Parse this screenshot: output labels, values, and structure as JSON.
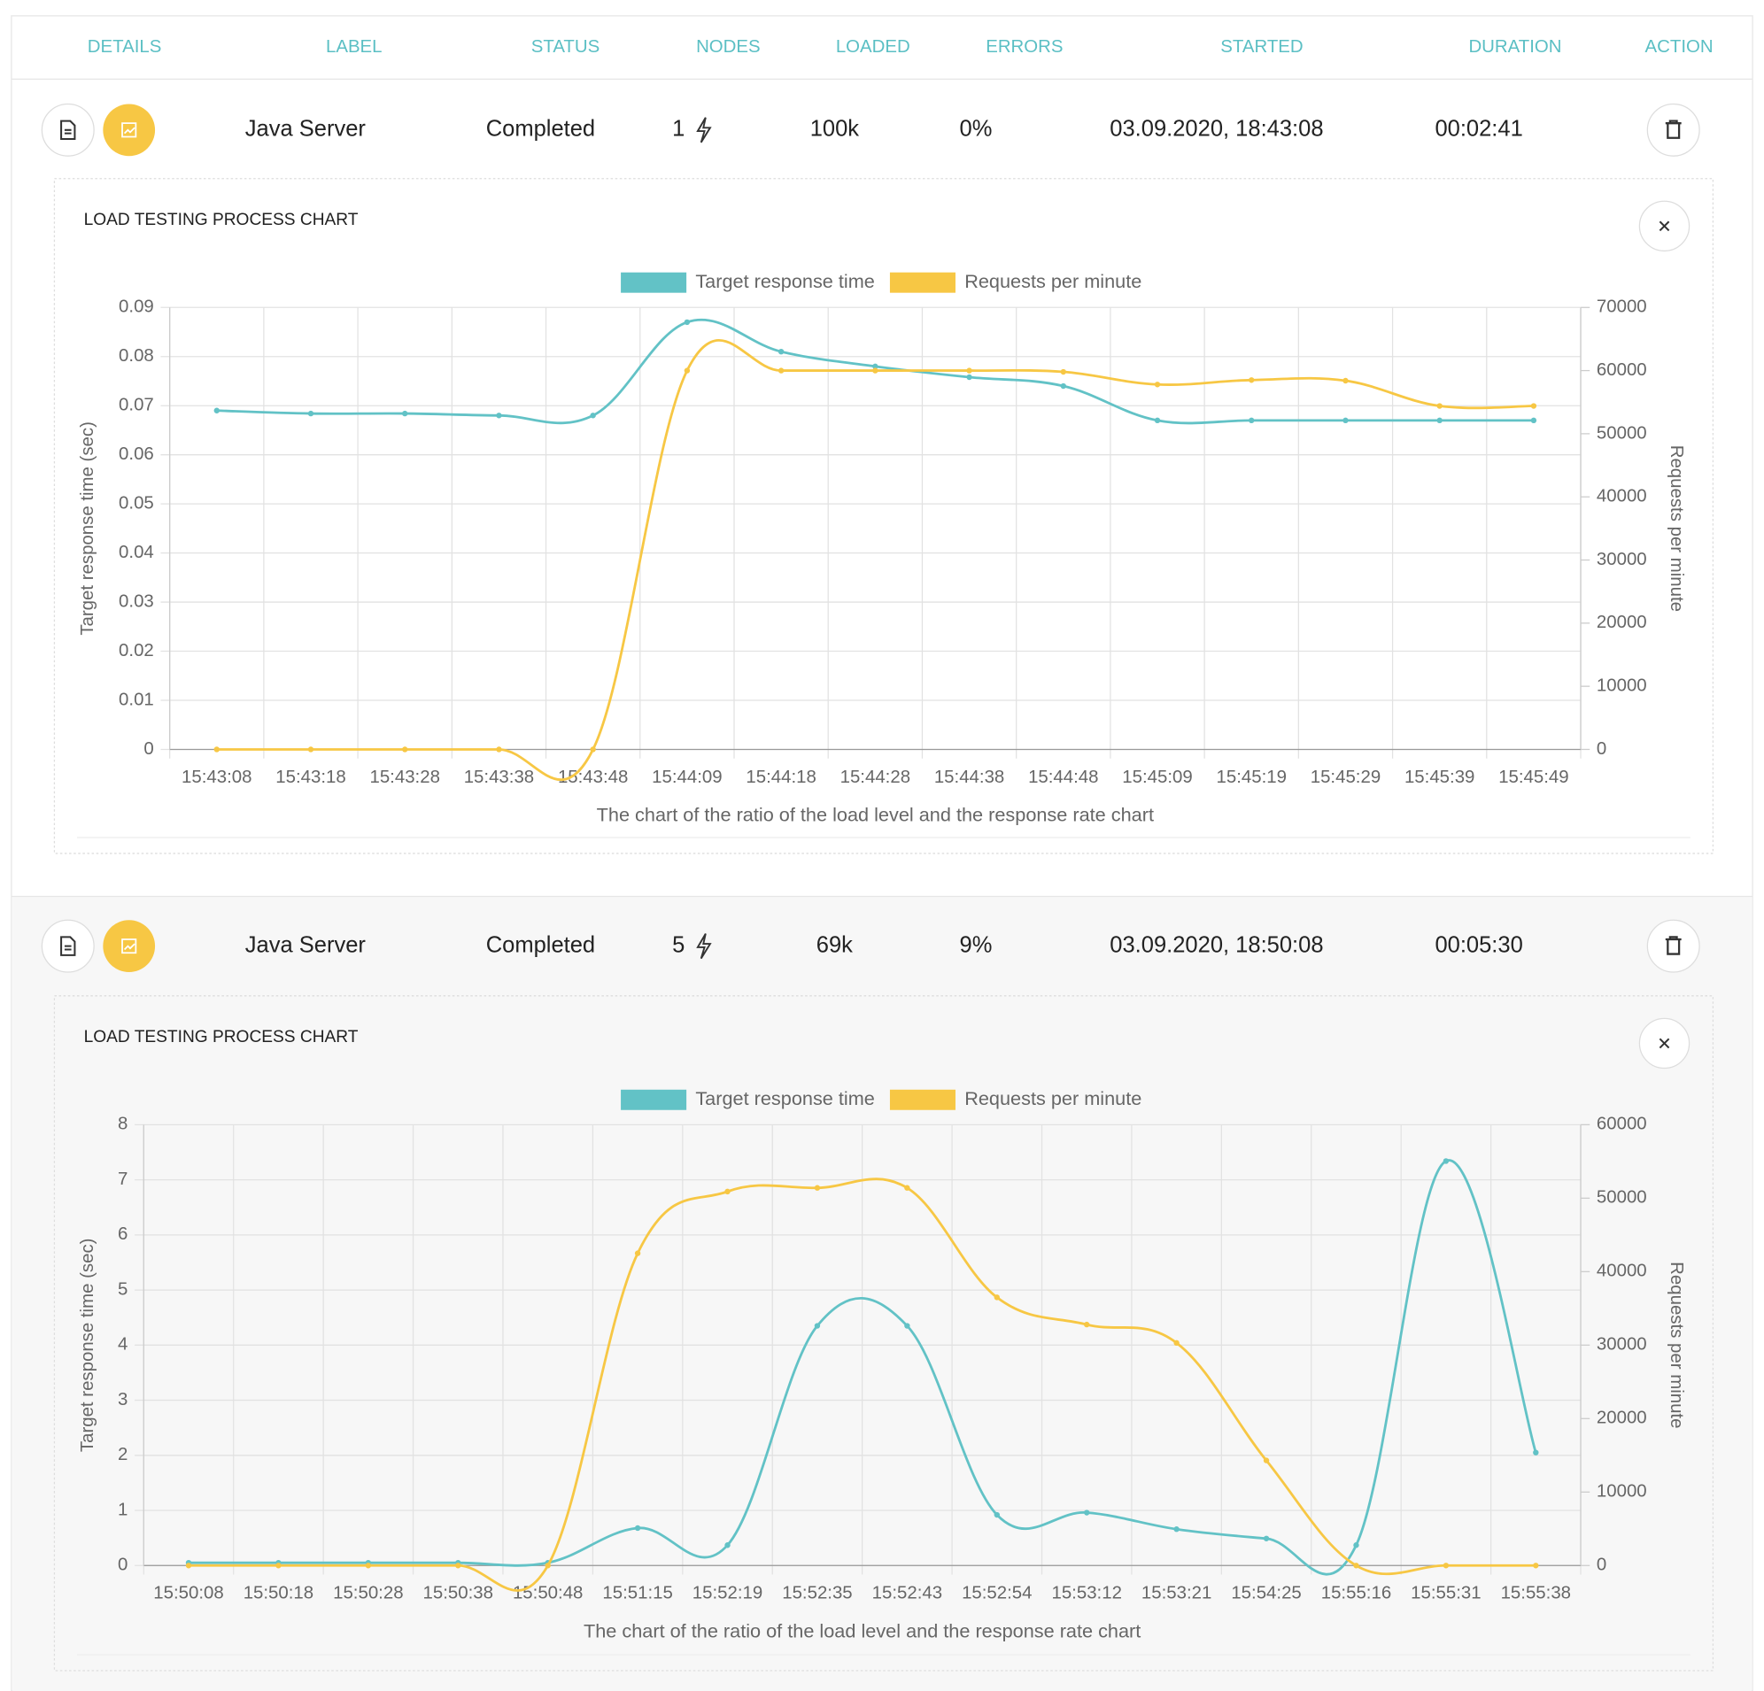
{
  "header": [
    "DETAILS",
    "LABEL",
    "STATUS",
    "NODES",
    "LOADED",
    "ERRORS",
    "STARTED",
    "DURATION",
    "ACTION"
  ],
  "rows": [
    {
      "label": "Java Server",
      "status": "Completed",
      "nodes": 1,
      "loaded": "100k",
      "errors": "0%",
      "started": "03.09.2020, 18:43:08",
      "duration": "00:02:41",
      "chart": {
        "type": "line",
        "title": "LOAD TESTING PROCESS CHART",
        "x_label": "The chart of the ratio of the load level and the response rate chart",
        "y_label": "Target response time (sec)",
        "y2_label": "Requests per minute",
        "categories": [
          "15:43:08",
          "15:43:18",
          "15:43:28",
          "15:43:38",
          "15:43:48",
          "15:44:09",
          "15:44:18",
          "15:44:28",
          "15:44:38",
          "15:44:48",
          "15:45:09",
          "15:45:19",
          "15:45:29",
          "15:45:39",
          "15:45:49"
        ],
        "ylim": [
          0,
          0.09
        ],
        "yticks": [
          0,
          0.01,
          0.02,
          0.03,
          0.04,
          0.05,
          0.06,
          0.07,
          0.08,
          0.09
        ],
        "y2lim": [
          0,
          70000
        ],
        "y2ticks": [
          0,
          10000,
          20000,
          30000,
          40000,
          50000,
          60000,
          70000
        ],
        "grid": true,
        "series": [
          {
            "name": "Target response time",
            "color": "#62c2c6",
            "values": [
              0.069,
              0.0684,
              0.0684,
              0.068,
              0.068,
              0.087,
              0.081,
              0.078,
              0.0758,
              0.074,
              0.067,
              0.067,
              0.067,
              0.067,
              0.067
            ]
          },
          {
            "name": "Requests per minute",
            "color": "#f7c744",
            "axis": "y2",
            "values": [
              0,
              0,
              0,
              0,
              0,
              60000,
              60000,
              60000,
              60000,
              59800,
              57800,
              58500,
              58400,
              54400,
              54400
            ]
          }
        ]
      }
    },
    {
      "label": "Java Server",
      "status": "Completed",
      "nodes": 5,
      "loaded": "69k",
      "errors": "9%",
      "started": "03.09.2020, 18:50:08",
      "duration": "00:05:30",
      "chart": {
        "type": "line",
        "title": "LOAD TESTING PROCESS CHART",
        "x_label": "The chart of the ratio of the load level and the response rate chart",
        "y_label": "Target response time (sec)",
        "y2_label": "Requests per minute",
        "categories": [
          "15:50:08",
          "15:50:18",
          "15:50:28",
          "15:50:38",
          "15:50:48",
          "15:51:15",
          "15:52:19",
          "15:52:35",
          "15:52:43",
          "15:52:54",
          "15:53:12",
          "15:53:21",
          "15:54:25",
          "15:55:16",
          "15:55:31",
          "15:55:38"
        ],
        "ylim": [
          0,
          8
        ],
        "yticks": [
          0,
          1,
          2,
          3,
          4,
          5,
          6,
          7,
          8
        ],
        "y2lim": [
          0,
          60000
        ],
        "y2ticks": [
          0,
          10000,
          20000,
          30000,
          40000,
          50000,
          60000
        ],
        "grid": true,
        "series": [
          {
            "name": "Target response time",
            "color": "#62c2c6",
            "values": [
              0.05,
              0.05,
              0.05,
              0.05,
              0.05,
              0.68,
              0.37,
              4.35,
              4.35,
              0.92,
              0.96,
              0.66,
              0.49,
              0.37,
              7.34,
              2.05
            ]
          },
          {
            "name": "Requests per minute",
            "color": "#f7c744",
            "axis": "y2",
            "values": [
              0,
              0,
              0,
              0,
              0,
              42500,
              50900,
              51400,
              51400,
              36500,
              32800,
              30300,
              14300,
              0,
              0,
              0
            ]
          }
        ]
      }
    }
  ]
}
